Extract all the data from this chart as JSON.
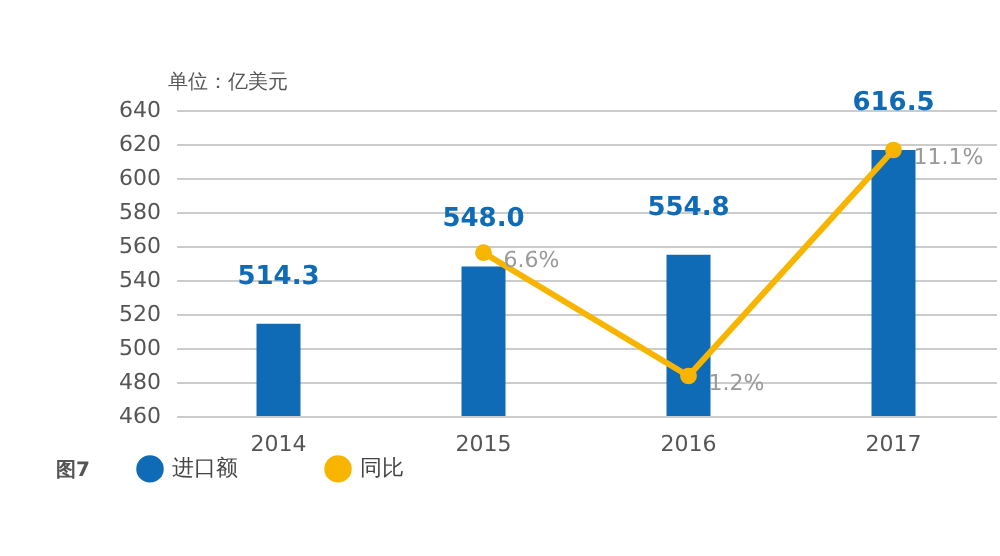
{
  "chart_data": {
    "type": "bar",
    "categories": [
      "2014",
      "2015",
      "2016",
      "2017"
    ],
    "series": [
      {
        "name": "进口额",
        "color": "#0f6bb5",
        "values": [
          514.3,
          548.0,
          554.8,
          616.5
        ],
        "value_labels": [
          "514.3",
          "548.0",
          "554.8",
          "616.5"
        ]
      },
      {
        "name": "同比",
        "type": "line",
        "axis": "y2",
        "color": "#f7b500",
        "values": [
          null,
          6.6,
          1.2,
          11.1
        ],
        "value_labels": [
          null,
          "6.6%",
          "1.2%",
          "11.1%"
        ]
      }
    ],
    "ylim": [
      460,
      640
    ],
    "yticks": [
      460,
      480,
      500,
      520,
      540,
      560,
      580,
      600,
      620,
      640
    ],
    "grid": "y",
    "legend": "bottom left",
    "marker": "circle",
    "annotations": [
      "单位：亿美元",
      "图7"
    ]
  }
}
